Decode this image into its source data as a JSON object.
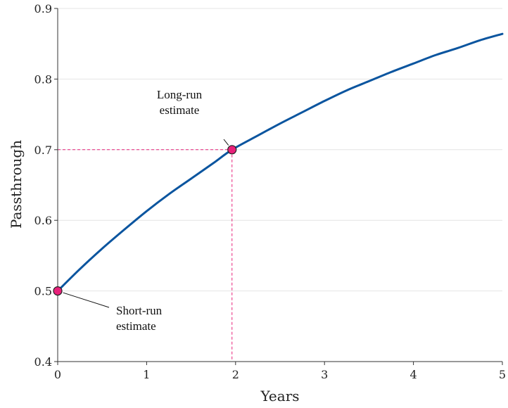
{
  "chart_data": {
    "type": "line",
    "xlabel": "Years",
    "ylabel": "Passthrough",
    "xlim": [
      0,
      5
    ],
    "ylim": [
      0.4,
      0.9
    ],
    "x_ticks": [
      "0",
      "1",
      "2",
      "3",
      "4",
      "5"
    ],
    "y_ticks": [
      "0.4",
      "0.5",
      "0.6",
      "0.7",
      "0.8",
      "0.9"
    ],
    "grid": "horizontal",
    "series": [
      {
        "color": "#0b559f",
        "x": [
          0,
          0.25,
          0.5,
          0.75,
          1,
          1.25,
          1.5,
          1.75,
          1.96,
          2.25,
          2.5,
          2.75,
          3,
          3.25,
          3.5,
          3.75,
          4,
          4.25,
          4.5,
          4.75,
          5
        ],
        "y": [
          0.5,
          0.531,
          0.56,
          0.587,
          0.613,
          0.637,
          0.659,
          0.681,
          0.7,
          0.72,
          0.737,
          0.753,
          0.769,
          0.784,
          0.797,
          0.81,
          0.822,
          0.834,
          0.844,
          0.855,
          0.864
        ]
      }
    ],
    "points": [
      {
        "label": [
          "Short-run",
          "estimate"
        ],
        "x": 0,
        "y": 0.5,
        "color": "#e8217a"
      },
      {
        "label": [
          "Long-run",
          "estimate"
        ],
        "x": 1.96,
        "y": 0.7,
        "color": "#e8217a"
      }
    ],
    "reference_lines": {
      "x": 1.96,
      "y": 0.7,
      "color": "#e8217a"
    }
  }
}
